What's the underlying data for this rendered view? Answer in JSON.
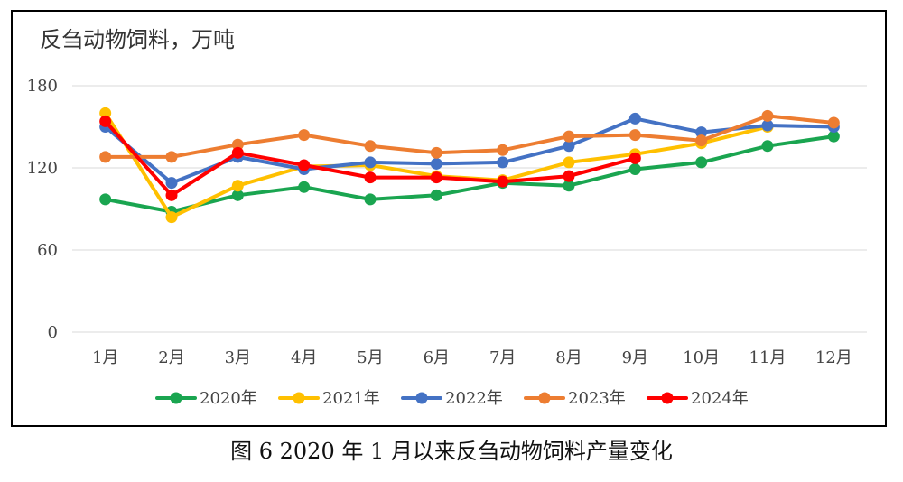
{
  "chart_data": {
    "type": "line",
    "title": "反刍动物饲料，万吨",
    "categories": [
      "1月",
      "2月",
      "3月",
      "4月",
      "5月",
      "6月",
      "7月",
      "8月",
      "9月",
      "10月",
      "11月",
      "12月"
    ],
    "ylim": [
      0,
      180
    ],
    "yticks": [
      0,
      60,
      120,
      180
    ],
    "grid": true,
    "legend_position": "bottom",
    "series": [
      {
        "name": "2020年",
        "color": "#1aa550",
        "values": [
          97,
          88,
          100,
          106,
          97,
          100,
          109,
          107,
          119,
          124,
          136,
          143
        ]
      },
      {
        "name": "2021年",
        "color": "#ffc000",
        "values": [
          160,
          84,
          107,
          121,
          122,
          114,
          111,
          124,
          130,
          138,
          150,
          null
        ]
      },
      {
        "name": "2022年",
        "color": "#4472c4",
        "values": [
          150,
          109,
          128,
          119,
          124,
          123,
          124,
          136,
          156,
          146,
          151,
          150
        ]
      },
      {
        "name": "2023年",
        "color": "#ed7d31",
        "values": [
          128,
          128,
          137,
          144,
          136,
          131,
          133,
          143,
          144,
          140,
          158,
          153
        ]
      },
      {
        "name": "2024年",
        "color": "#ff0000",
        "values": [
          154,
          100,
          131,
          122,
          113,
          113,
          110,
          114,
          127,
          null,
          null,
          null
        ]
      }
    ]
  },
  "caption": "图 6 2020 年 1 月以来反刍动物饲料产量变化"
}
